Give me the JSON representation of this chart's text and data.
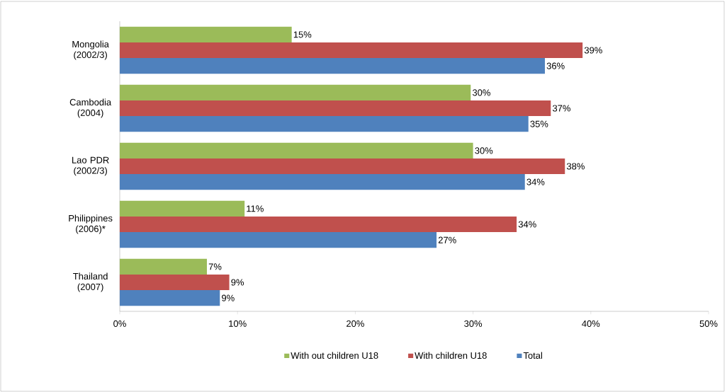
{
  "chart_data": {
    "type": "bar",
    "orientation": "horizontal",
    "categories": [
      "Mongolia (2002/3)",
      "Cambodia (2004)",
      "Lao PDR (2002/3)",
      "Philippines (2006)*",
      "Thailand (2007)"
    ],
    "series": [
      {
        "name": "With out children U18",
        "color": "#9bbb59",
        "values": [
          14.6,
          29.8,
          30.0,
          10.6,
          7.4
        ],
        "value_labels": [
          "15%",
          "30%",
          "30%",
          "11%",
          "7%"
        ]
      },
      {
        "name": "With children U18",
        "color": "#c0504d",
        "values": [
          39.3,
          36.6,
          37.8,
          33.7,
          9.3
        ],
        "value_labels": [
          "39%",
          "37%",
          "38%",
          "34%",
          "9%"
        ]
      },
      {
        "name": "Total",
        "color": "#4f81bd",
        "values": [
          36.1,
          34.7,
          34.4,
          26.9,
          8.5
        ],
        "value_labels": [
          "36%",
          "35%",
          "34%",
          "27%",
          "9%"
        ]
      }
    ],
    "xlim": [
      0,
      50
    ],
    "xticks": [
      {
        "value": 0,
        "label": "0%"
      },
      {
        "value": 10,
        "label": "10%"
      },
      {
        "value": 20,
        "label": "20%"
      },
      {
        "value": 30,
        "label": "30%"
      },
      {
        "value": 40,
        "label": "40%"
      },
      {
        "value": 50,
        "label": "50%"
      }
    ],
    "legend": "bottom",
    "grid": false
  }
}
